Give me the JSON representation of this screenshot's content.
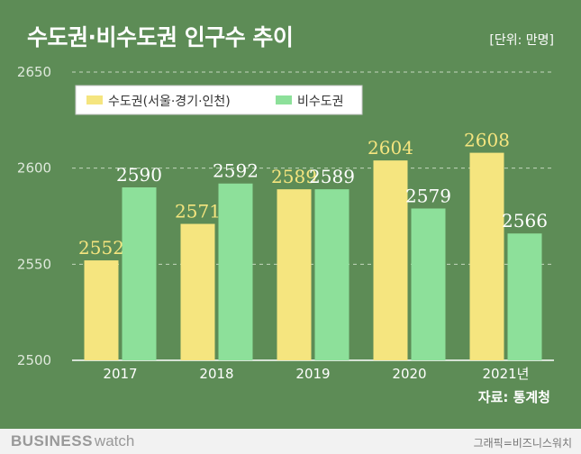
{
  "header": {
    "title": "수도권·비수도권 인구수 추이",
    "unit": "[단위: 만명]"
  },
  "footer": {
    "source": "자료: 통계청",
    "brand_main": "BUSINESS",
    "brand_sub": "watch",
    "credit": "그래픽=비즈니스워치"
  },
  "colors": {
    "background": "#5d8c56",
    "capital": "#f5e57f",
    "noncapital": "#8de09a",
    "capital_label": "#f5e57f",
    "noncapital_label": "#ffffff"
  },
  "chart_data": {
    "type": "bar",
    "title": "수도권·비수도권 인구수 추이",
    "unit": "만명",
    "categories": [
      "2017",
      "2018",
      "2019",
      "2020",
      "2021년"
    ],
    "series": [
      {
        "name": "수도권(서울·경기·인천)",
        "values": [
          2552,
          2571,
          2589,
          2604,
          2608
        ]
      },
      {
        "name": "비수도권",
        "values": [
          2590,
          2592,
          2589,
          2579,
          2566
        ]
      }
    ],
    "ylim": [
      2500,
      2650
    ],
    "yticks": [
      2500,
      2550,
      2600,
      2650
    ],
    "grid": true,
    "legend_position": "top-left"
  }
}
